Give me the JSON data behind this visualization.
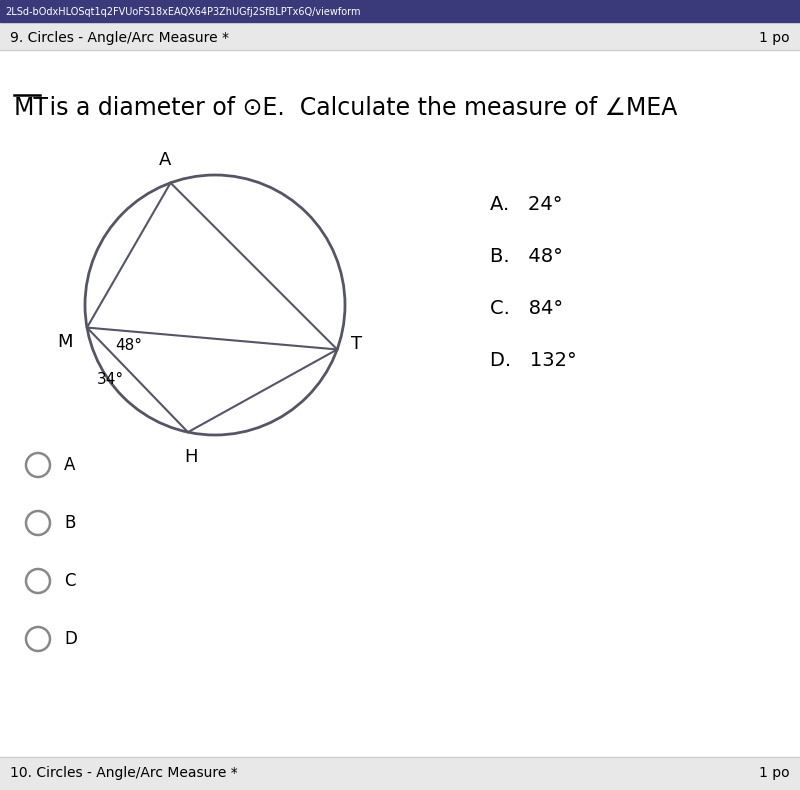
{
  "bg_color": "#d8d8d8",
  "top_bar_color": "#3a3a7a",
  "top_bar_text": "2LSd-bOdxHLOSqt1q2FVUoFS18xEAQX64P3ZhUGfj2SfBLPTx6Q/viewform",
  "section_label": "9. Circles - Angle/Arc Measure *",
  "points_label": "1 po",
  "choices": [
    "A.   24°",
    "B.   48°",
    "C.   84°",
    "D.   132°"
  ],
  "radio_labels": [
    "A",
    "B",
    "C",
    "D"
  ],
  "bottom_label": "10. Circles - Angle/Arc Measure *",
  "bottom_right_label": "1 po",
  "angle_48_label": "48°",
  "angle_34_label": "34°",
  "circle_color": "#555566",
  "line_color": "#555566",
  "radio_color": "#888888"
}
